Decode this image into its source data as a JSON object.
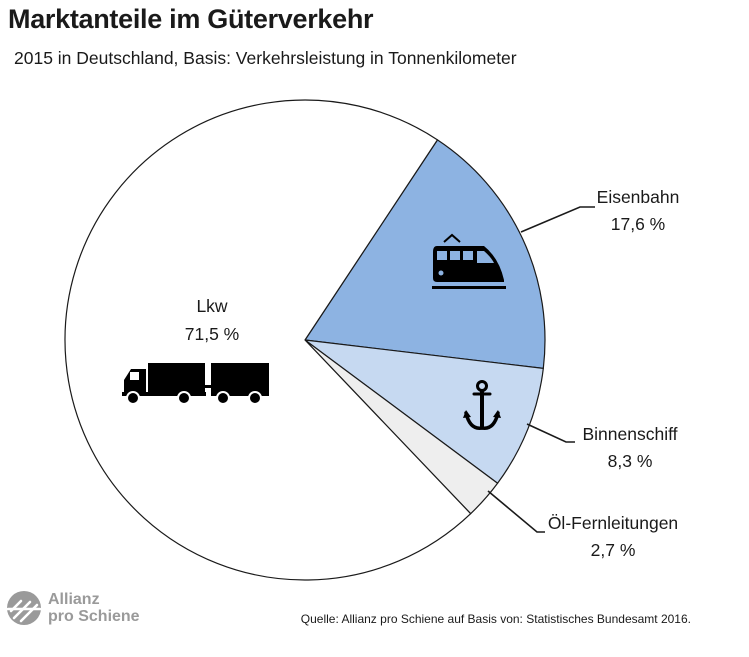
{
  "header": {
    "title": "Marktanteile im Güterverkehr",
    "subtitle": "2015 in Deutschland, Basis: Verkehrsleistung in Tonnenkilometer"
  },
  "footer": {
    "source": "Quelle: Allianz pro Schiene auf Basis von: Statistisches Bundesamt 2016.",
    "logo_line1": "Allianz",
    "logo_line2": "pro Schiene"
  },
  "colors": {
    "eisenbahn": "#8db3e2",
    "binnenschiff": "#c6d9f1",
    "oel": "#eeeeee",
    "lkw": "#ffffff",
    "outline": "#1a1a1a"
  },
  "chart_data": {
    "type": "pie",
    "title": "Marktanteile im Güterverkehr",
    "subtitle": "2015 in Deutschland, Basis: Verkehrsleistung in Tonnenkilometer",
    "slices": [
      {
        "key": "eisenbahn",
        "name": "Eisenbahn",
        "value": 17.6,
        "label": "17,6 %",
        "icon": "train-icon"
      },
      {
        "key": "binnenschiff",
        "name": "Binnenschiff",
        "value": 8.3,
        "label": "8,3 %",
        "icon": "anchor-icon"
      },
      {
        "key": "oel",
        "name": "Öl-Fernleitungen",
        "value": 2.7,
        "label": "2,7 %",
        "icon": ""
      },
      {
        "key": "lkw",
        "name": "Lkw",
        "value": 71.5,
        "label": "71,5 %",
        "icon": "truck-icon"
      }
    ]
  }
}
